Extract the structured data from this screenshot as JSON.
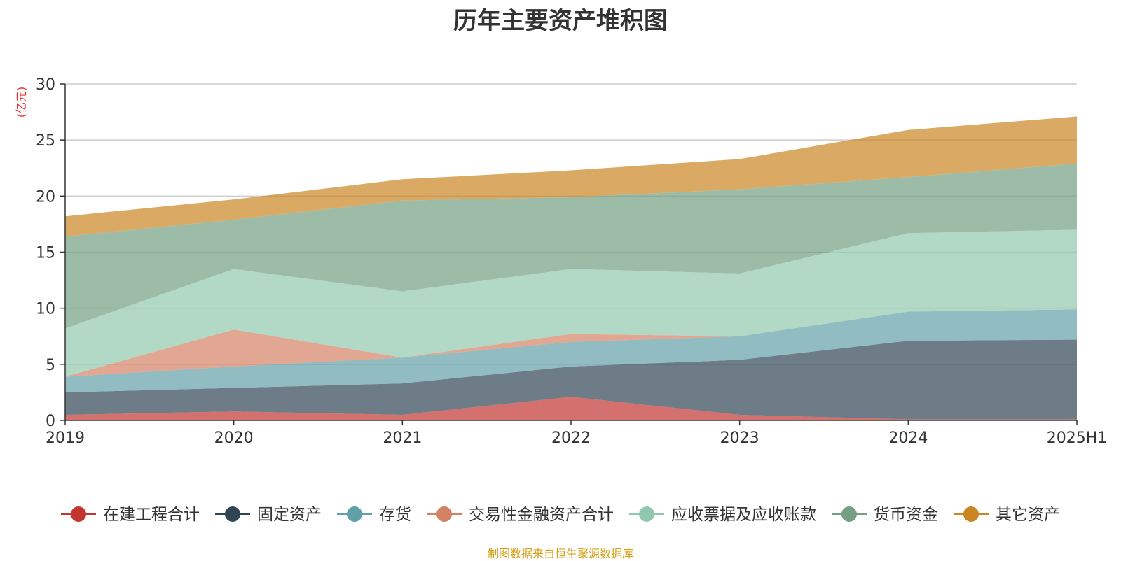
{
  "chart_data": {
    "type": "area",
    "stacked": true,
    "title": "历年主要资产堆积图",
    "unit": "(亿元)",
    "x": [
      "2019",
      "2020",
      "2021",
      "2022",
      "2023",
      "2024",
      "2025H1"
    ],
    "ylim": [
      0,
      30
    ],
    "yticks": [
      "0",
      "5",
      "10",
      "15",
      "20",
      "25",
      "30"
    ],
    "grid": true,
    "legend_position": "bottom",
    "series": [
      {
        "name": "在建工程合计",
        "color": "#c23531",
        "values": [
          0.5,
          0.8,
          0.5,
          2.1,
          0.5,
          0.1,
          0.1
        ]
      },
      {
        "name": "固定资产",
        "color": "#2f4554",
        "values": [
          2.0,
          2.1,
          2.8,
          2.7,
          4.9,
          7.0,
          7.1
        ]
      },
      {
        "name": "存货",
        "color": "#61a0a8",
        "values": [
          1.4,
          1.9,
          2.3,
          2.2,
          2.1,
          2.6,
          2.7
        ]
      },
      {
        "name": "交易性金融资产合计",
        "color": "#d48265",
        "values": [
          0.0,
          3.3,
          0.0,
          0.7,
          0.0,
          0.0,
          0.0
        ]
      },
      {
        "name": "应收票据及应收账款",
        "color": "#91c7ae",
        "values": [
          4.3,
          5.4,
          5.9,
          5.8,
          5.6,
          7.0,
          7.1
        ]
      },
      {
        "name": "货币资金",
        "color": "#749f83",
        "values": [
          8.2,
          4.4,
          8.1,
          6.4,
          7.5,
          5.0,
          5.9
        ]
      },
      {
        "name": "其它资产",
        "color": "#ca8622",
        "values": [
          1.8,
          1.8,
          1.9,
          2.4,
          2.7,
          4.2,
          4.2
        ]
      }
    ]
  },
  "footer": {
    "source": "制图数据来自恒生聚源数据库"
  }
}
